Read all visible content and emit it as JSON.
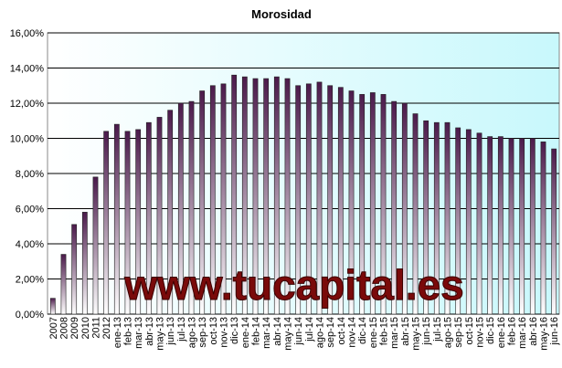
{
  "chart_data": {
    "type": "bar",
    "title": "Morosidad",
    "watermark": "www.tucapital.es",
    "categories": [
      "2007",
      "2008",
      "2009",
      "2010",
      "2011",
      "2012",
      "ene-13",
      "feb-13",
      "mar-13",
      "abr-13",
      "may-13",
      "jun-13",
      "jul-13",
      "ago-13",
      "sep-13",
      "oct-13",
      "nov-13",
      "dic-13",
      "ene-14",
      "feb-14",
      "mar-14",
      "abr-14",
      "may-14",
      "jun-14",
      "jul-14",
      "ago-14",
      "sep-14",
      "oct-14",
      "nov-14",
      "dic-14",
      "ene-15",
      "feb-15",
      "mar-15",
      "abr-15",
      "may-15",
      "jun-15",
      "jul-15",
      "ago-15",
      "sep-15",
      "oct-15",
      "nov-15",
      "dic-15",
      "ene-16",
      "feb-16",
      "mar-16",
      "abr-16",
      "may-16",
      "jun-16"
    ],
    "values": [
      0.9,
      3.4,
      5.1,
      5.8,
      7.8,
      10.4,
      10.8,
      10.4,
      10.5,
      10.9,
      11.2,
      11.6,
      12.0,
      12.1,
      12.7,
      13.0,
      13.1,
      13.6,
      13.5,
      13.4,
      13.4,
      13.5,
      13.4,
      13.0,
      13.1,
      13.2,
      13.0,
      12.9,
      12.7,
      12.5,
      12.6,
      12.5,
      12.1,
      12.0,
      11.4,
      11.0,
      10.9,
      10.9,
      10.6,
      10.5,
      10.3,
      10.1,
      10.1,
      10.0,
      10.0,
      10.0,
      9.8,
      9.4
    ],
    "color": "#4b1a4b",
    "ylim": [
      0,
      16
    ],
    "yticks": [
      {
        "value": 0,
        "label": "0,00%"
      },
      {
        "value": 2,
        "label": "2,00%"
      },
      {
        "value": 4,
        "label": "4,00%"
      },
      {
        "value": 6,
        "label": "6,00%"
      },
      {
        "value": 8,
        "label": "8,00%"
      },
      {
        "value": 10,
        "label": "10,00%"
      },
      {
        "value": 12,
        "label": "12,00%"
      },
      {
        "value": 14,
        "label": "14,00%"
      },
      {
        "value": 16,
        "label": "16,00%"
      }
    ],
    "grid": true
  }
}
